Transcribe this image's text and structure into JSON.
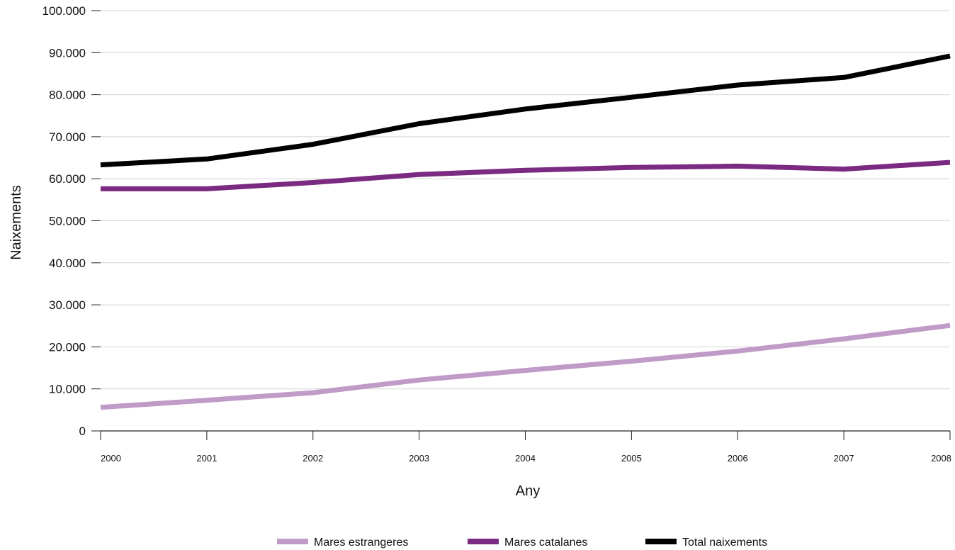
{
  "chart_data": {
    "type": "line",
    "title": "",
    "xlabel": "Any",
    "ylabel": "Naixements",
    "x": [
      "2000",
      "2001",
      "2002",
      "2003",
      "2004",
      "2005",
      "2006",
      "2007",
      "2008"
    ],
    "ylim": [
      0,
      100000
    ],
    "yticks": [
      0,
      10000,
      20000,
      30000,
      40000,
      50000,
      60000,
      70000,
      80000,
      90000,
      100000
    ],
    "ytick_labels": [
      "0",
      "10.000",
      "20.000",
      "30.000",
      "40.000",
      "50.000",
      "60.000",
      "70.000",
      "80.000",
      "90.000",
      "100.000"
    ],
    "grid": true,
    "legend_position": "bottom",
    "series": [
      {
        "name": "Mares estrangeres",
        "color": "#c19bc8",
        "values": [
          5600,
          7300,
          9100,
          12100,
          14400,
          16600,
          19000,
          21900,
          25100
        ]
      },
      {
        "name": "Mares catalanes",
        "color": "#7a2a80",
        "values": [
          57600,
          57600,
          59100,
          61000,
          62000,
          62700,
          63000,
          62300,
          63900
        ]
      },
      {
        "name": "Total naixements",
        "color": "#000000",
        "values": [
          63300,
          64700,
          68200,
          73100,
          76600,
          79400,
          82300,
          84100,
          89200
        ]
      }
    ]
  }
}
